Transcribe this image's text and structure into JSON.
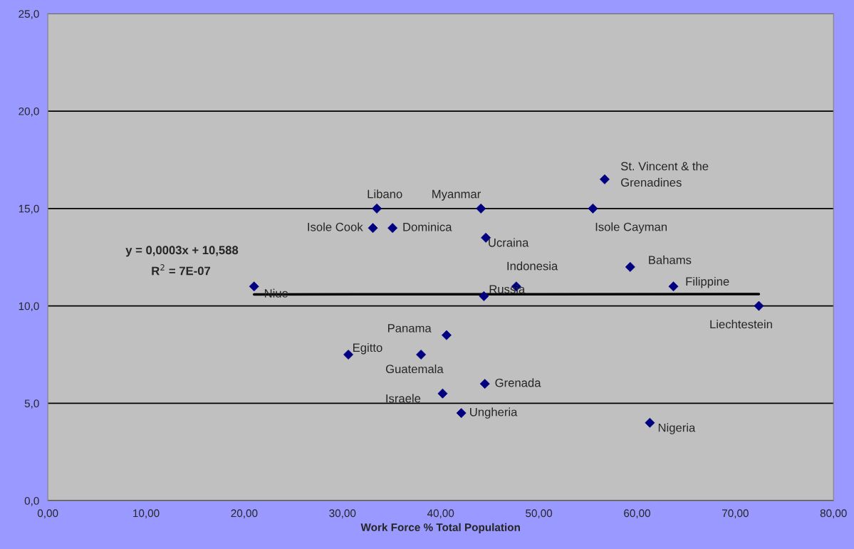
{
  "chart_data": {
    "type": "scatter",
    "xlabel": "Work Force % Total Population",
    "x": [
      21.0,
      33.5,
      33.1,
      35.1,
      44.1,
      44.6,
      56.7,
      55.5,
      59.3,
      63.7,
      72.4,
      47.7,
      44.4,
      40.6,
      30.6,
      38.0,
      44.5,
      40.2,
      42.1,
      61.3
    ],
    "series": [
      {
        "color": "#000080",
        "marker": "diamond",
        "values": [
          11.0,
          15.0,
          14.0,
          14.0,
          15.0,
          13.5,
          16.5,
          15.0,
          12.0,
          11.0,
          10.0,
          11.0,
          10.5,
          8.5,
          7.5,
          7.5,
          6.0,
          5.5,
          4.5,
          4.0
        ]
      },
      {
        "type": "line",
        "color": "#000000",
        "x": [
          21.0,
          72.4
        ],
        "values": [
          10.59,
          10.61
        ]
      }
    ],
    "annotations": [
      {
        "text": "Niue",
        "x": 21.0,
        "y": 11.0
      },
      {
        "text": "Libano",
        "x": 33.5,
        "y": 15.0
      },
      {
        "text": "Isole Cook",
        "x": 33.1,
        "y": 14.0
      },
      {
        "text": "Dominica",
        "x": 35.1,
        "y": 14.0
      },
      {
        "text": "Myanmar",
        "x": 44.1,
        "y": 15.0
      },
      {
        "text": "Ucraina",
        "x": 44.6,
        "y": 13.5
      },
      {
        "text": "St. Vincent & the\nGrenadines",
        "x": 56.7,
        "y": 16.5
      },
      {
        "text": "Isole Cayman",
        "x": 55.5,
        "y": 15.0
      },
      {
        "text": "Bahams",
        "x": 59.3,
        "y": 12.0
      },
      {
        "text": "Filippine",
        "x": 63.7,
        "y": 11.0
      },
      {
        "text": "Liechtestein",
        "x": 72.4,
        "y": 10.0
      },
      {
        "text": "Indonesia",
        "x": 47.7,
        "y": 11.0
      },
      {
        "text": "Russia",
        "x": 44.4,
        "y": 10.5
      },
      {
        "text": "Panama",
        "x": 40.6,
        "y": 8.5
      },
      {
        "text": "Egitto",
        "x": 30.6,
        "y": 7.5
      },
      {
        "text": "Guatemala",
        "x": 38.0,
        "y": 7.5
      },
      {
        "text": "Grenada",
        "x": 44.5,
        "y": 6.0
      },
      {
        "text": "Israele",
        "x": 40.2,
        "y": 5.5
      },
      {
        "text": "Ungheria",
        "x": 42.1,
        "y": 4.5
      },
      {
        "text": "Nigeria",
        "x": 61.3,
        "y": 4.0
      },
      "y = 0,0003x + 10,588",
      "R$^{2}$ = 7E-07"
    ],
    "xlim": [
      0,
      80
    ],
    "ylim": [
      0,
      25
    ],
    "xticks": [
      {
        "value": 0,
        "label": "0,00"
      },
      {
        "value": 10,
        "label": "10,00"
      },
      {
        "value": 20,
        "label": "20,00"
      },
      {
        "value": 30,
        "label": "30,00"
      },
      {
        "value": 40,
        "label": "40,00"
      },
      {
        "value": 50,
        "label": "50,00"
      },
      {
        "value": 60,
        "label": "60,00"
      },
      {
        "value": 70,
        "label": "70,00"
      },
      {
        "value": 80,
        "label": "80,00"
      }
    ],
    "yticks": [
      {
        "value": 0,
        "label": "0,0"
      },
      {
        "value": 5,
        "label": "5,0"
      },
      {
        "value": 10,
        "label": "10,0"
      },
      {
        "value": 15,
        "label": "15,0"
      },
      {
        "value": 20,
        "label": "20,0"
      },
      {
        "value": 25,
        "label": "25,0"
      }
    ],
    "grid": "y",
    "legend": false
  }
}
